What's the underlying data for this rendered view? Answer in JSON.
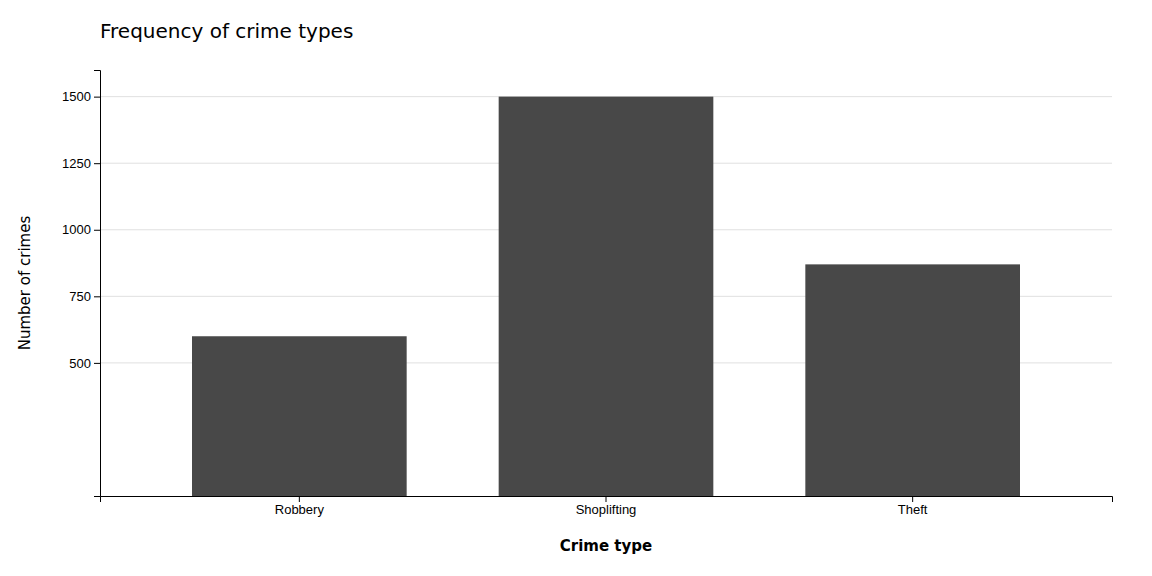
{
  "chart_data": {
    "type": "bar",
    "title": "Frequency of crime types",
    "categories": [
      "Robbery",
      "Shoplifting",
      "Theft"
    ],
    "values": [
      600,
      1500,
      870
    ],
    "color": "#484848",
    "xlabel": "Crime type",
    "ylabel": "Number of crimes",
    "ylim": [
      0,
      1600
    ],
    "yticks": [
      500,
      750,
      1000,
      1250,
      1500
    ],
    "grid": true
  }
}
